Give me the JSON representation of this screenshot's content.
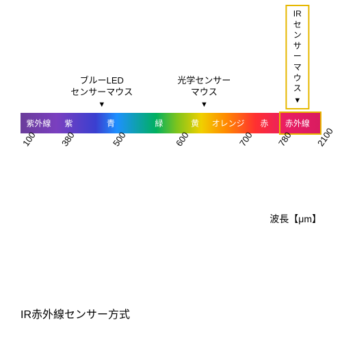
{
  "callouts": {
    "blueled": {
      "line1": "ブルーLED",
      "line2": "センサーマウス",
      "arrow": "▼",
      "left_pct": 27
    },
    "optical": {
      "line1": "光学センサー",
      "line2": "マウス",
      "arrow": "▼",
      "left_pct": 61
    },
    "ir": {
      "line1": "IRセンサー",
      "line2": "マウス",
      "arrow": "▼",
      "left_pct": 92
    }
  },
  "spectrum": {
    "gradient_stops": [
      {
        "color": "#6a3d9a",
        "pct": 0
      },
      {
        "color": "#7a3fbf",
        "pct": 12
      },
      {
        "color": "#3a3fd0",
        "pct": 25
      },
      {
        "color": "#1e90ff",
        "pct": 32
      },
      {
        "color": "#00b060",
        "pct": 45
      },
      {
        "color": "#7fc41c",
        "pct": 52
      },
      {
        "color": "#f0d000",
        "pct": 60
      },
      {
        "color": "#ff8c00",
        "pct": 68
      },
      {
        "color": "#ff3030",
        "pct": 78
      },
      {
        "color": "#e91e63",
        "pct": 88
      },
      {
        "color": "#d81b60",
        "pct": 100
      }
    ],
    "bands": [
      {
        "label": "紫外線",
        "pos_pct": 6
      },
      {
        "label": "紫",
        "pos_pct": 16
      },
      {
        "label": "青",
        "pos_pct": 30
      },
      {
        "label": "緑",
        "pos_pct": 46
      },
      {
        "label": "黄",
        "pos_pct": 58
      },
      {
        "label": "オレンジ",
        "pos_pct": 69
      },
      {
        "label": "赤",
        "pos_pct": 81
      },
      {
        "label": "赤外線",
        "pos_pct": 92
      }
    ],
    "highlight": {
      "left_pct": 86,
      "width_pct": 13
    }
  },
  "ticks": [
    {
      "label": "100",
      "pos_pct": 0
    },
    {
      "label": "380",
      "pos_pct": 13
    },
    {
      "label": "500",
      "pos_pct": 30
    },
    {
      "label": "600",
      "pos_pct": 51
    },
    {
      "label": "700",
      "pos_pct": 72
    },
    {
      "label": "780",
      "pos_pct": 85
    },
    {
      "label": "2100",
      "pos_pct": 98
    }
  ],
  "unit_label": "波長【μm】",
  "caption": "IR赤外線センサー方式",
  "colors": {
    "highlight_border": "#e6b800"
  }
}
